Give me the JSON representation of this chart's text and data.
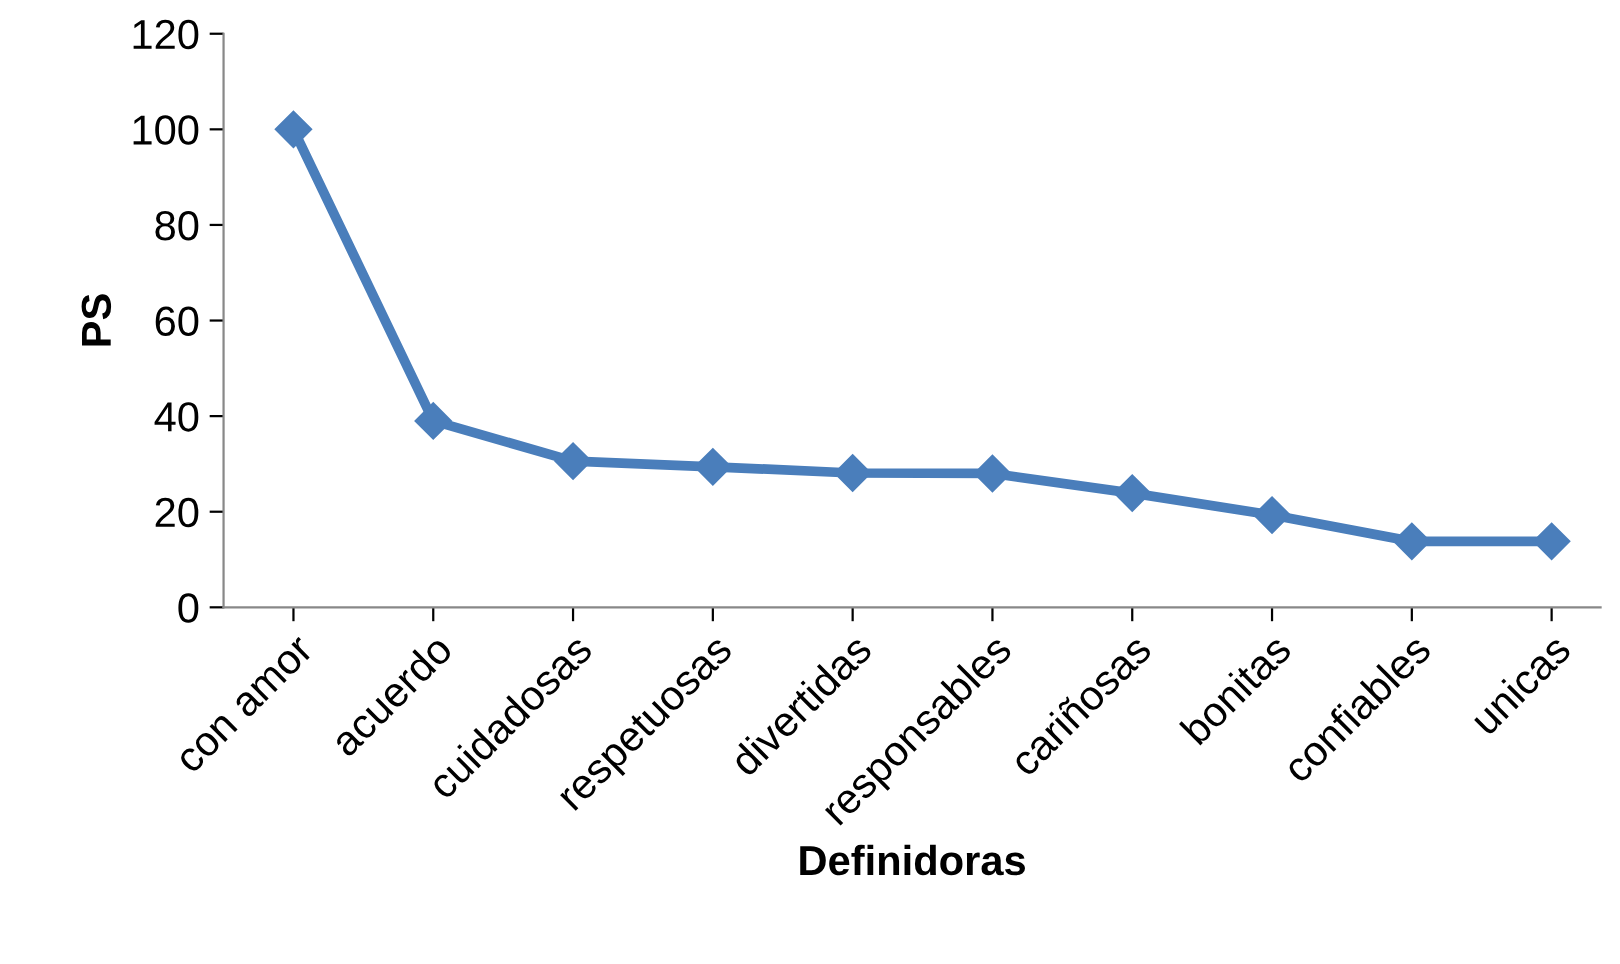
{
  "chart_data": {
    "type": "line",
    "xlabel": "Definidoras",
    "ylabel": "PS",
    "categories": [
      "con amor",
      "acuerdo",
      "cuidadosas",
      "respetuosas",
      "divertidas",
      "responsables",
      "cariñosas",
      "bonitas",
      "confiables",
      "unicas"
    ],
    "series": [
      {
        "color": "#4a7ebb",
        "values": [
          100,
          39,
          30.6,
          29.4,
          28.1,
          28,
          23.9,
          19.3,
          13.8,
          13.8
        ]
      }
    ],
    "ylim": [
      0,
      120
    ],
    "yticks": [
      0,
      20,
      40,
      60,
      80,
      100,
      120
    ],
    "grid": false,
    "marker": "diamond",
    "line_style": "solid"
  }
}
